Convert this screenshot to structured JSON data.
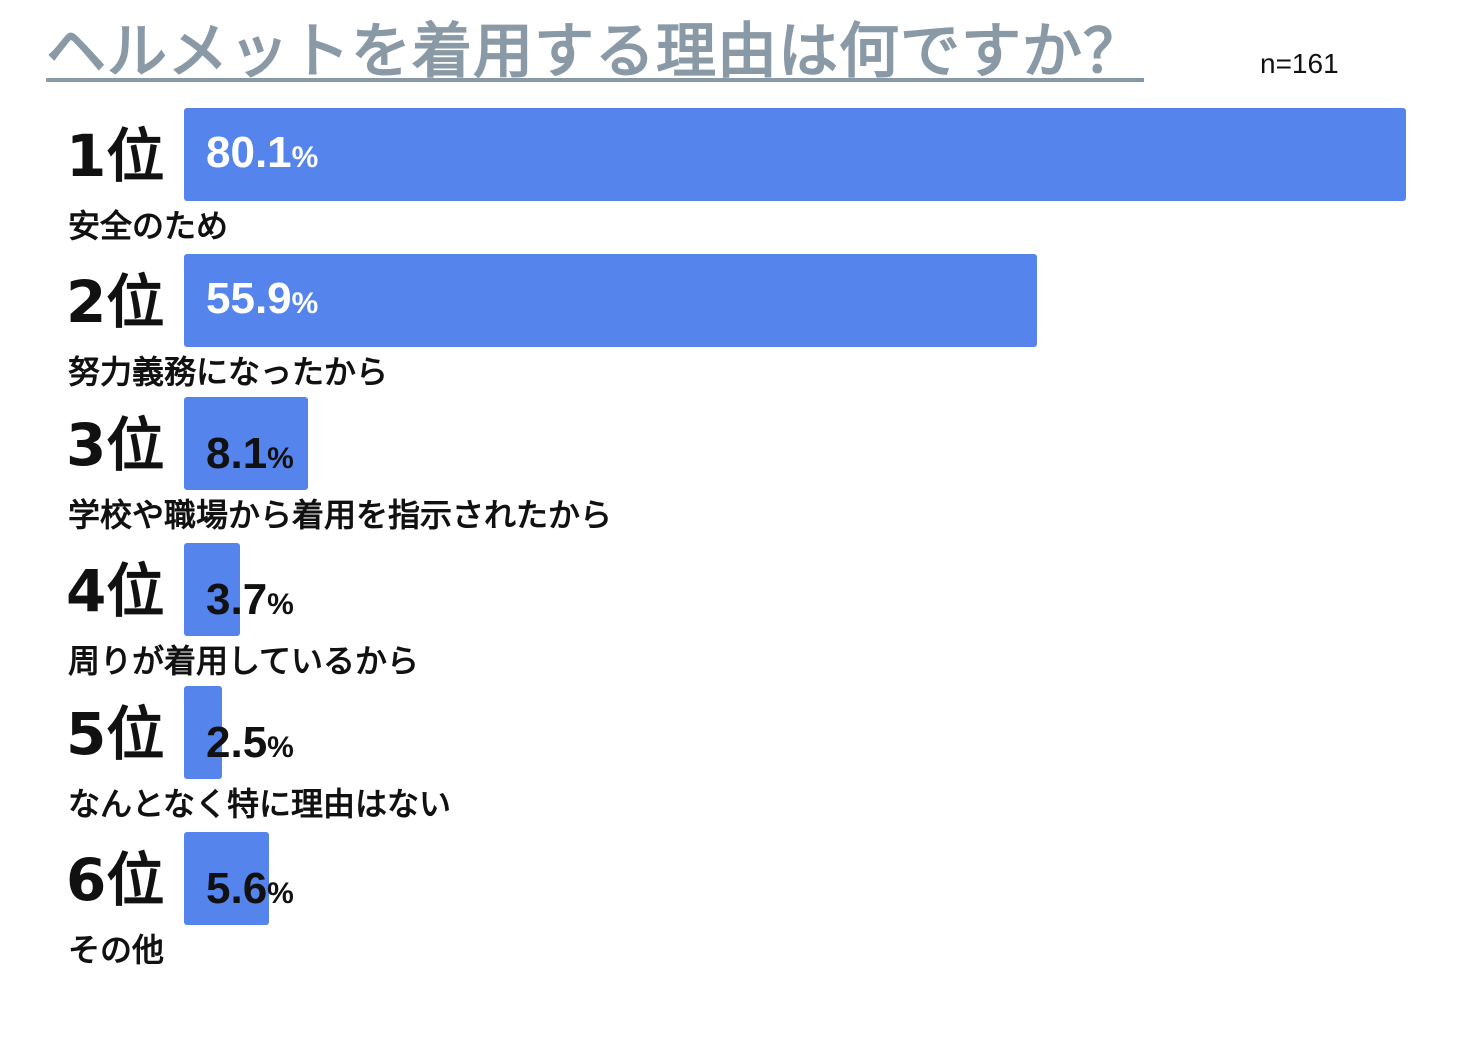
{
  "title": "ヘルメットを着用する理由は何ですか？",
  "sample": "n=161",
  "colors": {
    "bar": "#5484ec",
    "title": "#8a99a6",
    "text_on_bar": "#ffffff",
    "text_off_bar": "#111111"
  },
  "chart_data": {
    "type": "bar",
    "orientation": "horizontal",
    "title": "ヘルメットを着用する理由は何ですか？",
    "note": "n=161",
    "unit": "%",
    "xlim": [
      0,
      80.1
    ],
    "categories": [
      "安全のため",
      "努力義務になったから",
      "学校や職場から着用を指示されたから",
      "周りが着用しているから",
      "なんとなく特に理由はない",
      "その他"
    ],
    "ranks": [
      "1位",
      "2位",
      "3位",
      "4位",
      "5位",
      "6位"
    ],
    "values": [
      80.1,
      55.9,
      8.1,
      3.7,
      2.5,
      5.6
    ],
    "value_labels": [
      "80.1",
      "55.9",
      "8.1",
      "3.7",
      "2.5",
      "5.6"
    ],
    "percent_sign": "%",
    "grid": false,
    "legend": "none"
  }
}
